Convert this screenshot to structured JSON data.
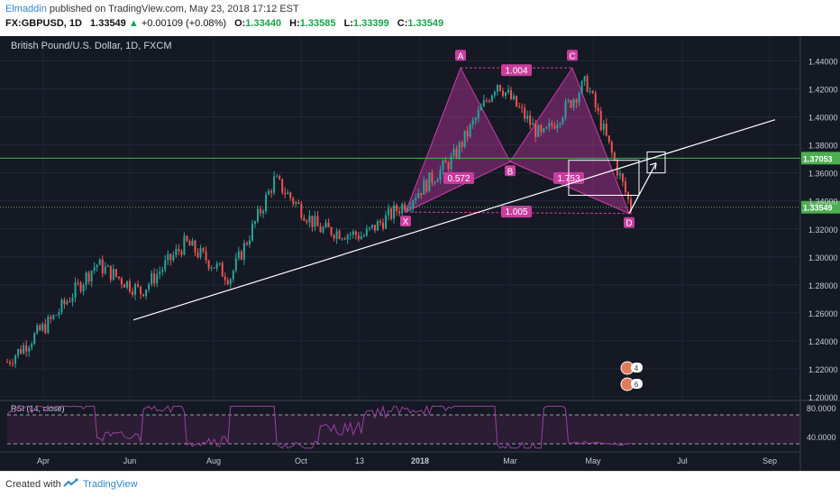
{
  "header": {
    "author": "Elmaddin",
    "published": "published on TradingView.com, May 23, 2018 17:12 EST",
    "symbol": "FX:GBPUSD, 1D",
    "last": "1.33549",
    "change_arrow": "▲",
    "change": "+0.00109 (+0.08%)",
    "open_label": "O:",
    "open": "1.33440",
    "high_label": "H:",
    "high": "1.33585",
    "low_label": "L:",
    "low": "1.33399",
    "close_label": "C:",
    "close": "1.33549"
  },
  "chart_title": "British Pound/U.S. Dollar, 1D, FXCM",
  "footer": {
    "created_with": "Created with",
    "brand": "TradingView"
  },
  "colors": {
    "background": "#151924",
    "pattern_fill": "#9c2f86",
    "pattern_label": "#c93d9e",
    "green_level": "#4caf50",
    "trendline": "#ffffff",
    "rsi_line": "#9c3fa0",
    "price_up": "#26a69a",
    "price_down": "#ef5350"
  },
  "chart_data": [
    {
      "type": "candlestick",
      "title": "British Pound/U.S. Dollar, 1D, FXCM",
      "x_tick_labels": [
        "Apr",
        "Jun",
        "Aug",
        "Oct",
        "13",
        "2018",
        "Mar",
        "May",
        "Jul",
        "Sep"
      ],
      "y_tick_labels": [
        "1.20000",
        "1.22000",
        "1.24000",
        "1.26000",
        "1.28000",
        "1.30000",
        "1.32000",
        "1.34000",
        "1.36000",
        "1.38000",
        "1.40000",
        "1.42000",
        "1.44000"
      ],
      "ylim": [
        1.2,
        1.45
      ],
      "current_price_label": "1.33549",
      "horizontal_level_label": "1.37053",
      "approx_close_path": [
        {
          "x": "Mar 2017",
          "y": 1.225
        },
        {
          "x": "Apr 2017",
          "y": 1.255
        },
        {
          "x": "May 2017",
          "y": 1.295
        },
        {
          "x": "Jun 2017",
          "y": 1.275
        },
        {
          "x": "Jul 2017",
          "y": 1.31
        },
        {
          "x": "Aug 2017",
          "y": 1.285
        },
        {
          "x": "Sep 2017",
          "y": 1.355
        },
        {
          "x": "Oct 2017",
          "y": 1.32
        },
        {
          "x": "Nov 2017",
          "y": 1.315
        },
        {
          "x": "Dec 2017",
          "y": 1.34
        },
        {
          "x": "Jan 2018",
          "y": 1.37
        },
        {
          "x": "Feb 2018",
          "y": 1.425
        },
        {
          "x": "Mar 2018",
          "y": 1.385
        },
        {
          "x": "Apr 2018",
          "y": 1.425
        },
        {
          "x": "May 2018",
          "y": 1.335
        }
      ],
      "pattern_points": [
        {
          "label": "X",
          "y": 1.332
        },
        {
          "label": "A",
          "y": 1.435
        },
        {
          "label": "B",
          "y": 1.368
        },
        {
          "label": "C",
          "y": 1.435
        },
        {
          "label": "D",
          "y": 1.331
        }
      ],
      "ratio_labels": [
        "1.004",
        "0.572",
        "1.753",
        "1.005"
      ],
      "annotation_badges": [
        "4",
        "6"
      ]
    },
    {
      "type": "line",
      "title": "RSI (14, close)",
      "y_tick_labels": [
        "80.0000",
        "40.0000"
      ],
      "guide_levels": [
        70,
        30
      ]
    }
  ]
}
